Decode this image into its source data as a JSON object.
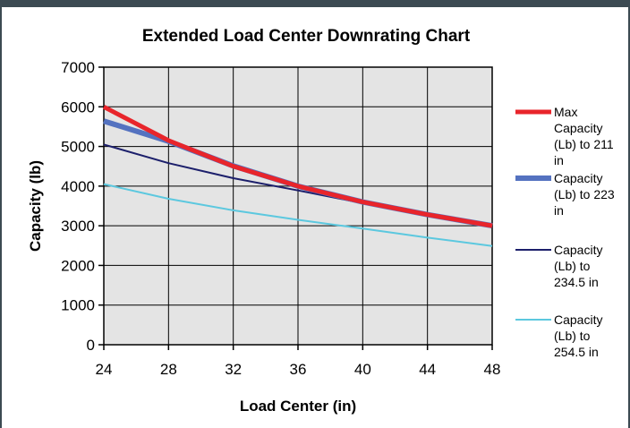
{
  "chart_data": {
    "type": "line",
    "title": "Extended Load Center Downrating Chart",
    "xlabel": "Load Center (in)",
    "ylabel": "Capacity (lb)",
    "x": [
      24,
      28,
      32,
      36,
      40,
      44,
      48
    ],
    "xlim": [
      24,
      48
    ],
    "ylim": [
      0,
      7000
    ],
    "xticks": [
      "24",
      "28",
      "32",
      "36",
      "40",
      "44",
      "48"
    ],
    "yticks": [
      "0",
      "1000",
      "2000",
      "3000",
      "4000",
      "5000",
      "6000",
      "7000"
    ],
    "grid": true,
    "legend_position": "right",
    "plot_background": "#e4e4e4",
    "series": [
      {
        "name": "Max Capacity (Lb) to 211 in",
        "legend_lines": [
          "Max",
          "Capacity",
          "(Lb) to 211",
          "in"
        ],
        "color": "#e8252b",
        "line_width": 5,
        "values": [
          6000,
          5150,
          4500,
          4000,
          3600,
          3280,
          3000
        ]
      },
      {
        "name": "Capacity (Lb) to 223 in",
        "legend_lines": [
          "Capacity",
          "(Lb) to 223",
          "in"
        ],
        "color": "#5472c0",
        "line_width": 6,
        "values": [
          5640,
          5130,
          4510,
          4000,
          3600,
          3280,
          3000
        ]
      },
      {
        "name": "Capacity (Lb) to 234.5 in",
        "legend_lines": [
          "Capacity",
          "(Lb) to",
          "234.5 in"
        ],
        "color": "#1c1f6b",
        "line_width": 2,
        "values": [
          5050,
          4580,
          4200,
          3890,
          3570,
          3260,
          2990
        ]
      },
      {
        "name": "Capacity (Lb) to 254.5 in",
        "legend_lines": [
          "Capacity",
          "(Lb) to",
          "254.5 in"
        ],
        "color": "#5cc8df",
        "line_width": 2,
        "values": [
          4050,
          3680,
          3390,
          3150,
          2930,
          2700,
          2490
        ]
      }
    ]
  }
}
